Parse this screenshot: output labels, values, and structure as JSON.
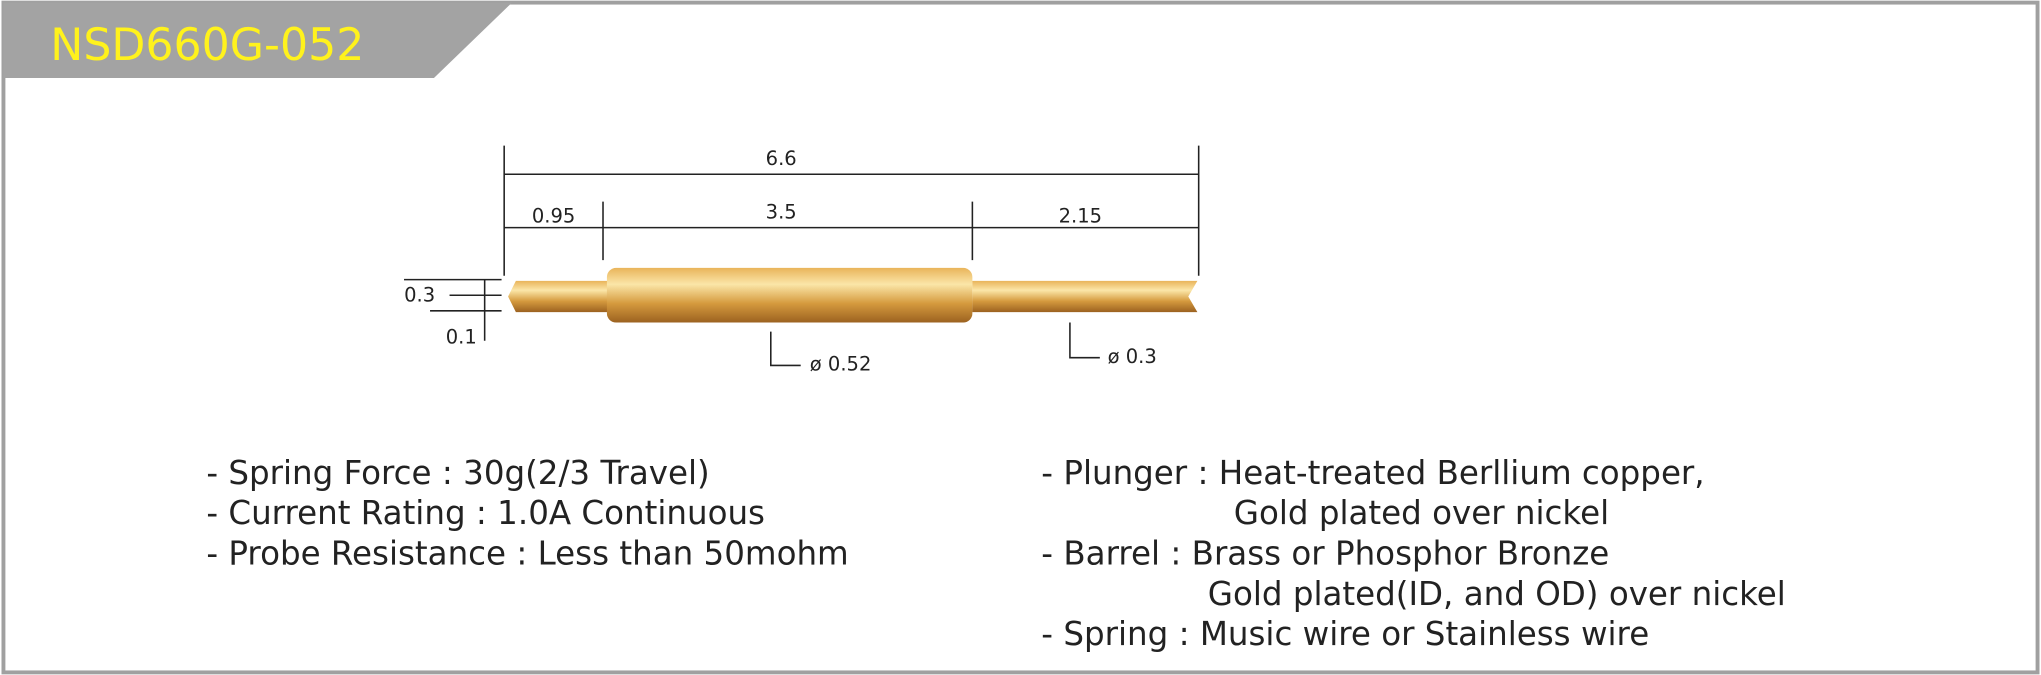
{
  "header": {
    "title": "NSD660G-052"
  },
  "drawing": {
    "overall_length": "6.6",
    "tip_length": "0.95",
    "barrel_length": "3.5",
    "plunger_length": "2.15",
    "tip_height": "0.3",
    "tip_offset": "0.1",
    "barrel_diameter": "ø 0.52",
    "plunger_diameter": "ø 0.3"
  },
  "specs": {
    "left": [
      "- Spring Force : 30g(2/3 Travel)",
      "- Current Rating : 1.0A Continuous",
      "- Probe Resistance : Less than 50mohm"
    ],
    "right": [
      "- Plunger : Heat-treated Berllium copper,",
      "Gold plated over nickel",
      "- Barrel : Brass or Phosphor Bronze",
      "Gold plated(ID, and OD) over nickel",
      "- Spring : Music wire or Stainless wire"
    ]
  }
}
